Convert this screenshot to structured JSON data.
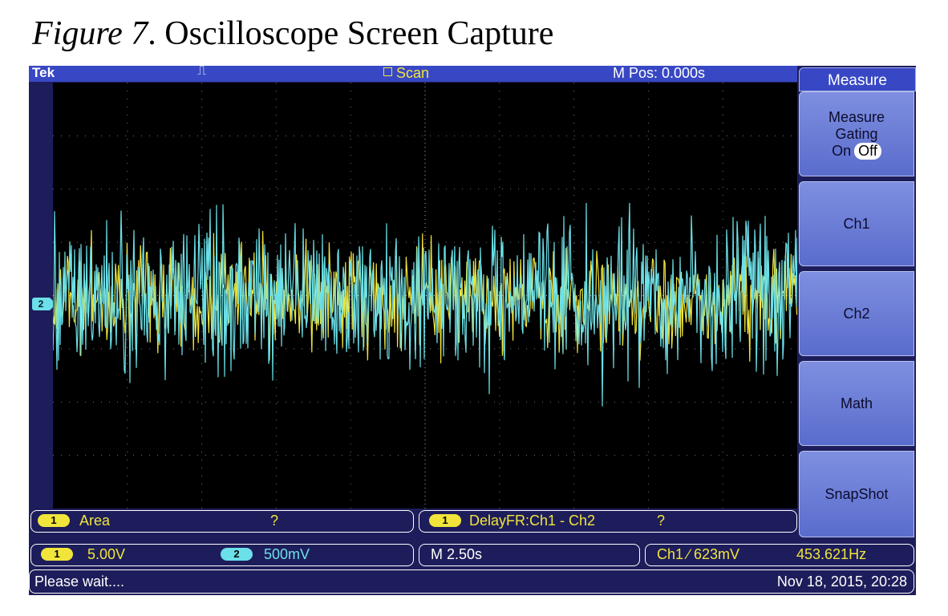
{
  "caption": {
    "figure": "Figure 7",
    "text": ". Oscilloscope Screen Capture"
  },
  "header": {
    "brand": "Tek",
    "trigger_icon": "waveform-trigger-icon",
    "mode": "Scan",
    "mpos": "M Pos: 0.000s"
  },
  "channel_marker": "2",
  "side_menu": {
    "title": "Measure",
    "gating": {
      "label_line1": "Measure",
      "label_line2": "Gating",
      "on": "On",
      "off": "Off"
    },
    "buttons": [
      "Ch1",
      "Ch2",
      "Math",
      "SnapShot"
    ]
  },
  "measurements": [
    {
      "channel": "1",
      "name": "Area",
      "value": "?"
    },
    {
      "channel": "1",
      "name": "DelayFR:Ch1 - Ch2",
      "value": "?"
    }
  ],
  "status": {
    "ch1_scale": "5.00V",
    "ch1_label": "1",
    "ch2_scale": "500mV",
    "ch2_label": "2",
    "timebase": "M 2.50s",
    "trigger": "Ch1 ∕ 623mV",
    "frequency": "453.621Hz",
    "message": "Please wait....",
    "datetime": "Nov 18, 2015, 20:28"
  },
  "colors": {
    "ch1": "#f1e53b",
    "ch2": "#6be0e8",
    "accent": "#3848c4"
  }
}
